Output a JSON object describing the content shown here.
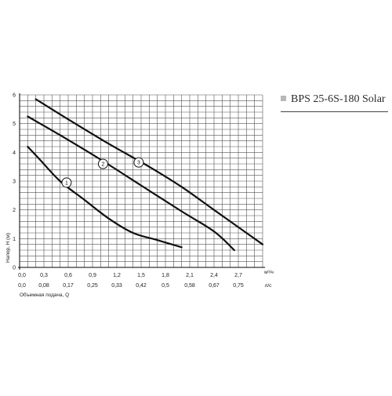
{
  "title": "BPS 25-6S-180 Solar",
  "chart_data": {
    "type": "line",
    "title": "BPS 25-6S-180 Solar",
    "ylabel": "Напор, Н (м)",
    "xlabel": "Объемная подача, Q",
    "x_unit_primary": "м³/ч",
    "x_unit_secondary": "л/с",
    "ylim": [
      0,
      6
    ],
    "xlim": [
      0,
      3
    ],
    "grid": true,
    "y_ticks": [
      "0",
      "1",
      "2",
      "3",
      "4",
      "5",
      "6"
    ],
    "x_ticks_primary": [
      {
        "label": "0,0",
        "value": 0
      },
      {
        "label": "0,3",
        "value": 0.3
      },
      {
        "label": "0,6",
        "value": 0.6
      },
      {
        "label": "0,9",
        "value": 0.9
      },
      {
        "label": "1,2",
        "value": 1.2
      },
      {
        "label": "1,5",
        "value": 1.5
      },
      {
        "label": "1,8",
        "value": 1.8
      },
      {
        "label": "2,1",
        "value": 2.1
      },
      {
        "label": "2,4",
        "value": 2.4
      },
      {
        "label": "2,7",
        "value": 2.7
      }
    ],
    "x_ticks_secondary": [
      "0,0",
      "0,08",
      "0,17",
      "0,25",
      "0,33",
      "0,42",
      "0,5",
      "0,58",
      "0,67",
      "0,75"
    ],
    "series": [
      {
        "name": "1",
        "points": [
          [
            0.1,
            4.2
          ],
          [
            0.25,
            3.75
          ],
          [
            0.5,
            3.0
          ],
          [
            0.8,
            2.35
          ],
          [
            1.1,
            1.7
          ],
          [
            1.4,
            1.2
          ],
          [
            1.7,
            0.95
          ],
          [
            2.0,
            0.7
          ]
        ],
        "label_at": [
          0.58,
          2.95
        ]
      },
      {
        "name": "2",
        "points": [
          [
            0.1,
            5.25
          ],
          [
            0.5,
            4.6
          ],
          [
            1.0,
            3.75
          ],
          [
            1.5,
            2.85
          ],
          [
            2.0,
            1.95
          ],
          [
            2.4,
            1.25
          ],
          [
            2.65,
            0.6
          ]
        ],
        "label_at": [
          1.03,
          3.6
        ]
      },
      {
        "name": "3",
        "points": [
          [
            0.2,
            5.85
          ],
          [
            0.6,
            5.15
          ],
          [
            1.1,
            4.3
          ],
          [
            1.6,
            3.5
          ],
          [
            2.0,
            2.8
          ],
          [
            2.4,
            2.0
          ],
          [
            2.8,
            1.2
          ],
          [
            3.0,
            0.8
          ]
        ],
        "label_at": [
          1.47,
          3.65
        ]
      }
    ]
  }
}
